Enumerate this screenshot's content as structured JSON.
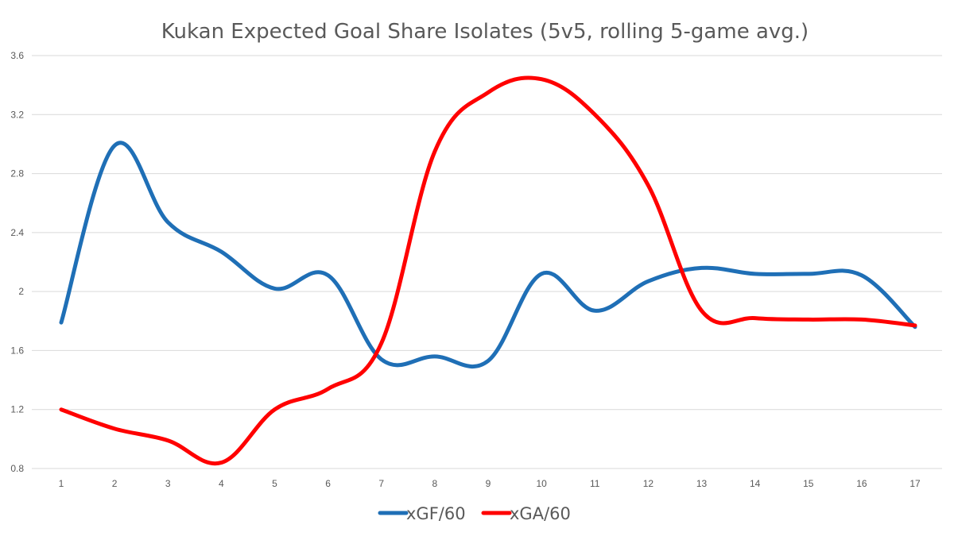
{
  "chart_data": {
    "type": "line",
    "title": "Kukan Expected Goal Share Isolates (5v5, rolling 5-game avg.)",
    "xlabel": "",
    "ylabel": "",
    "x": [
      1,
      2,
      3,
      4,
      5,
      6,
      7,
      8,
      9,
      10,
      11,
      12,
      13,
      14,
      15,
      16,
      17
    ],
    "ylim": [
      0.8,
      3.6
    ],
    "yticks": [
      "0.8",
      "1.2",
      "1.6",
      "2",
      "2.4",
      "2.8",
      "3.2",
      "3.6"
    ],
    "grid": true,
    "legend_position": "bottom",
    "smooth": true,
    "series": [
      {
        "name": "xGF/60",
        "color": "#1f6fb6",
        "values": [
          1.79,
          2.99,
          2.47,
          2.27,
          2.02,
          2.11,
          1.54,
          1.56,
          1.53,
          2.12,
          1.87,
          2.07,
          2.16,
          2.12,
          2.12,
          2.11,
          1.76
        ]
      },
      {
        "name": "xGA/60",
        "color": "#ff0000",
        "values": [
          1.2,
          1.07,
          0.99,
          0.84,
          1.2,
          1.34,
          1.65,
          2.95,
          3.35,
          3.44,
          3.2,
          2.72,
          1.87,
          1.82,
          1.81,
          1.81,
          1.77
        ]
      }
    ]
  }
}
